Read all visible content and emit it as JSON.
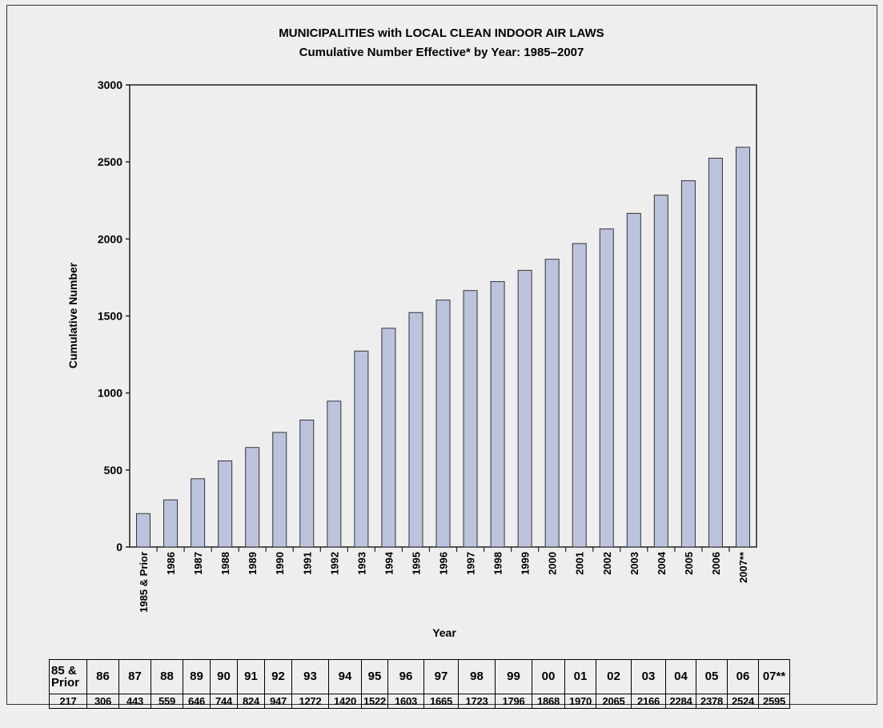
{
  "chart_data": {
    "type": "bar",
    "title": "MUNICIPALITIES with LOCAL CLEAN INDOOR AIR LAWS",
    "subtitle": "Cumulative Number Effective* by Year: 1985–2007",
    "xlabel": "Year",
    "ylabel": "Cumulative Number",
    "ylim": [
      0,
      3000
    ],
    "yticks": [
      0,
      500,
      1000,
      1500,
      2000,
      2500,
      3000
    ],
    "grid": false,
    "categories": [
      "1985 & Prior",
      "1986",
      "1987",
      "1988",
      "1989",
      "1990",
      "1991",
      "1992",
      "1993",
      "1994",
      "1995",
      "1996",
      "1997",
      "1998",
      "1999",
      "2000",
      "2001",
      "2002",
      "2003",
      "2004",
      "2005",
      "2006",
      "2007**"
    ],
    "values": [
      217,
      306,
      443,
      559,
      646,
      744,
      824,
      947,
      1272,
      1420,
      1522,
      1603,
      1665,
      1723,
      1796,
      1868,
      1970,
      2065,
      2166,
      2284,
      2378,
      2524,
      2595
    ],
    "bar_color": "#bcc3dc",
    "table_headers": [
      "85 & Prior",
      "86",
      "87",
      "88",
      "89",
      "90",
      "91",
      "92",
      "93",
      "94",
      "95",
      "96",
      "97",
      "98",
      "99",
      "00",
      "01",
      "02",
      "03",
      "04",
      "05",
      "06",
      "07**"
    ],
    "table_values": [
      "217",
      "306",
      "443",
      "559",
      "646",
      "744",
      "824",
      "947",
      "1272",
      "1420",
      "1522",
      "1603",
      "1665",
      "1723",
      "1796",
      "1868",
      "1970",
      "2065",
      "2166",
      "2284",
      "2378",
      "2524",
      "2595"
    ]
  }
}
